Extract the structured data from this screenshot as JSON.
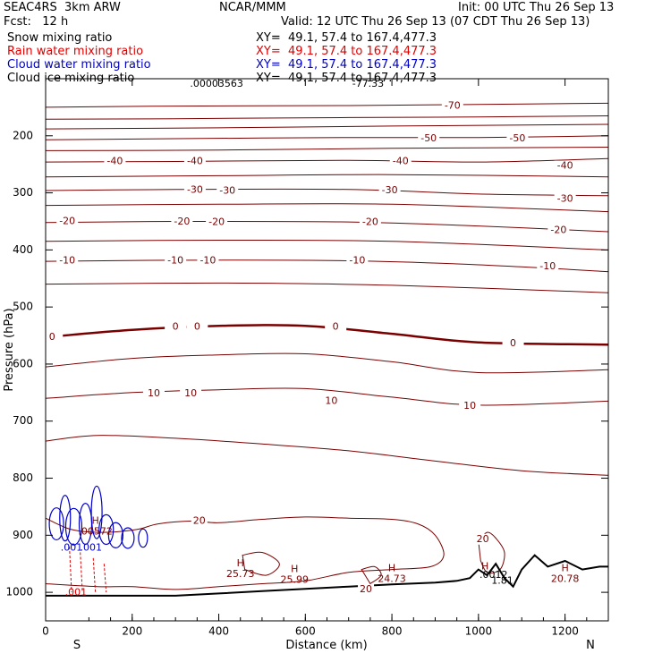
{
  "header": {
    "model": "SEAC4RS  3km ARW",
    "org": "NCAR/MMM",
    "init": "Init: 00 UTC Thu 26 Sep 13",
    "fcst": "Fcst:   12 h",
    "valid": "Valid: 12 UTC Thu 26 Sep 13 (07 CDT Thu 26 Sep 13)"
  },
  "fields": [
    {
      "label": "Snow mixing ratio",
      "xy": "XY=  49.1, 57.4 to 167.4,477.3",
      "color": "#000000"
    },
    {
      "label": "Rain water mixing ratio",
      "xy": "XY=  49.1, 57.4 to 167.4,477.3",
      "color": "#e00000"
    },
    {
      "label": "Cloud water mixing ratio",
      "xy": "XY=  49.1, 57.4 to 167.4,477.3",
      "color": "#0000c8"
    },
    {
      "label": "Cloud ice mixing ratio",
      "xy": "XY=  49.1, 57.4 to 167.4,477.3",
      "color": "#000000"
    }
  ],
  "chart_data": {
    "type": "line",
    "subtype": "cross-section contour",
    "xlabel": "Distance (km)",
    "ylabel": "Pressure (hPa)",
    "xlim": [
      0,
      1300
    ],
    "ylim": [
      1050,
      100
    ],
    "x_ticks": [
      0,
      200,
      400,
      600,
      800,
      1000,
      1200
    ],
    "y_ticks": [
      200,
      300,
      400,
      500,
      600,
      700,
      800,
      900,
      1000
    ],
    "direction_labels": {
      "left": "S",
      "right": "N"
    },
    "grid": false,
    "colors": {
      "temperature": "#7a0000",
      "terrain": "#000000",
      "cloud_water": "#0000c8",
      "rain": "#e00000"
    },
    "temperature_contours": [
      {
        "value": -70,
        "label": "-70",
        "x": [
          0,
          300,
          700,
          1000,
          1300
        ],
        "p": [
          150,
          148,
          147,
          145,
          143
        ],
        "labels_at": [
          [
            940,
            148
          ]
        ]
      },
      {
        "value": -60,
        "label": "",
        "x": [
          0,
          300,
          700,
          1000,
          1300
        ],
        "p": [
          171,
          170,
          168,
          167,
          165
        ],
        "labels_at": []
      },
      {
        "value": -55,
        "label": "",
        "x": [
          0,
          400,
          800,
          1300
        ],
        "p": [
          188,
          186,
          183,
          180
        ],
        "labels_at": []
      },
      {
        "value": -50,
        "label": "-50",
        "x": [
          0,
          300,
          700,
          1000,
          1300
        ],
        "p": [
          207,
          205,
          203,
          203,
          200
        ],
        "labels_at": [
          [
            885,
            205
          ],
          [
            1090,
            205
          ]
        ]
      },
      {
        "value": -45,
        "label": "",
        "x": [
          0,
          400,
          800,
          1300
        ],
        "p": [
          226,
          225,
          222,
          220
        ],
        "labels_at": []
      },
      {
        "value": -40,
        "label": "-40",
        "x": [
          0,
          300,
          700,
          1000,
          1300
        ],
        "p": [
          246,
          245,
          243,
          246,
          240
        ],
        "labels_at": [
          [
            160,
            245
          ],
          [
            345,
            245
          ],
          [
            820,
            245
          ],
          [
            1200,
            253
          ]
        ]
      },
      {
        "value": -35,
        "label": "",
        "x": [
          0,
          400,
          800,
          1300
        ],
        "p": [
          272,
          270,
          268,
          272
        ],
        "labels_at": []
      },
      {
        "value": -30,
        "label": "-30",
        "x": [
          0,
          300,
          700,
          1000,
          1300
        ],
        "p": [
          296,
          294,
          294,
          302,
          305
        ],
        "labels_at": [
          [
            345,
            295
          ],
          [
            420,
            297
          ],
          [
            795,
            296
          ],
          [
            1200,
            311
          ]
        ]
      },
      {
        "value": -25,
        "label": "",
        "x": [
          0,
          400,
          800,
          1300
        ],
        "p": [
          322,
          320,
          320,
          333
        ],
        "labels_at": []
      },
      {
        "value": -20,
        "label": "-20",
        "x": [
          0,
          300,
          700,
          1000,
          1300
        ],
        "p": [
          352,
          350,
          351,
          358,
          368
        ],
        "labels_at": [
          [
            50,
            350
          ],
          [
            315,
            351
          ],
          [
            395,
            352
          ],
          [
            750,
            352
          ],
          [
            1185,
            366
          ]
        ]
      },
      {
        "value": -15,
        "label": "",
        "x": [
          0,
          400,
          800,
          1300
        ],
        "p": [
          385,
          383,
          385,
          400
        ],
        "labels_at": []
      },
      {
        "value": -10,
        "label": "-10",
        "x": [
          0,
          300,
          700,
          1000,
          1300
        ],
        "p": [
          420,
          418,
          419,
          426,
          438
        ],
        "labels_at": [
          [
            50,
            419
          ],
          [
            300,
            419
          ],
          [
            375,
            419
          ],
          [
            720,
            419
          ],
          [
            1160,
            429
          ]
        ]
      },
      {
        "value": -5,
        "label": "",
        "x": [
          0,
          400,
          800,
          1300
        ],
        "p": [
          460,
          458,
          462,
          475
        ],
        "labels_at": []
      },
      {
        "value": 0,
        "label": "0",
        "bold": true,
        "x": [
          0,
          200,
          400,
          600,
          800,
          1000,
          1300
        ],
        "p": [
          553,
          540,
          533,
          533,
          547,
          562,
          566
        ],
        "labels_at": [
          [
            15,
            553
          ],
          [
            300,
            535
          ],
          [
            350,
            535
          ],
          [
            670,
            535
          ],
          [
            1080,
            564
          ]
        ]
      },
      {
        "value": 5,
        "label": "",
        "x": [
          0,
          200,
          400,
          600,
          800,
          1000,
          1300
        ],
        "p": [
          605,
          590,
          584,
          582,
          596,
          615,
          610
        ],
        "labels_at": []
      },
      {
        "value": 10,
        "label": "10",
        "x": [
          0,
          200,
          400,
          600,
          800,
          1000,
          1300
        ],
        "p": [
          660,
          650,
          645,
          643,
          658,
          672,
          665
        ],
        "labels_at": [
          [
            250,
            652
          ],
          [
            335,
            652
          ],
          [
            660,
            665
          ],
          [
            980,
            674
          ]
        ]
      },
      {
        "value": 15,
        "label": "",
        "x": [
          0,
          120,
          300,
          500,
          700,
          900,
          1100,
          1300
        ],
        "p": [
          735,
          725,
          730,
          740,
          752,
          770,
          787,
          795
        ],
        "labels_at": []
      }
    ],
    "annotations": [
      {
        "kind": "contour_label",
        "text": "20",
        "x": 355,
        "p": 875,
        "color": "#7a0000"
      },
      {
        "kind": "contour_label",
        "text": "20",
        "x": 740,
        "p": 995,
        "color": "#7a0000"
      },
      {
        "kind": "contour_label",
        "text": "20",
        "x": 1010,
        "p": 907,
        "color": "#7a0000"
      },
      {
        "kind": "high",
        "text": "H",
        "value": "25.73",
        "x": 450,
        "p": 950
      },
      {
        "kind": "high",
        "text": "H",
        "value": "25.99",
        "x": 575,
        "p": 960
      },
      {
        "kind": "high",
        "text": "H",
        "value": "24.73",
        "x": 800,
        "p": 958
      },
      {
        "kind": "high",
        "text": "H",
        "value": "20.78",
        "x": 1200,
        "p": 958
      },
      {
        "kind": "high",
        "text": "H",
        "value": "",
        "x": 1015,
        "p": 955
      },
      {
        "kind": "high",
        "text": "H",
        "value": ".00572",
        "x": 115,
        "p": 875
      },
      {
        "kind": "value",
        "text": ".0012",
        "x": 1035,
        "p": 970
      },
      {
        "kind": "value",
        "text": "1.81",
        "x": 1055,
        "p": 980
      },
      {
        "kind": "value",
        "text": ".001",
        "x": 60,
        "p": 922,
        "color": "#0000c8"
      },
      {
        "kind": "value",
        "text": ".001",
        "x": 105,
        "p": 922,
        "color": "#0000c8"
      },
      {
        "kind": "value",
        "text": ".001",
        "x": 70,
        "p": 1001,
        "color": "#e00000"
      },
      {
        "kind": "top_value",
        "text": ".00003563",
        "x": 395,
        "p": 100
      },
      {
        "kind": "top_value",
        "text": "-77.33",
        "x": 745,
        "p": 100
      }
    ]
  }
}
